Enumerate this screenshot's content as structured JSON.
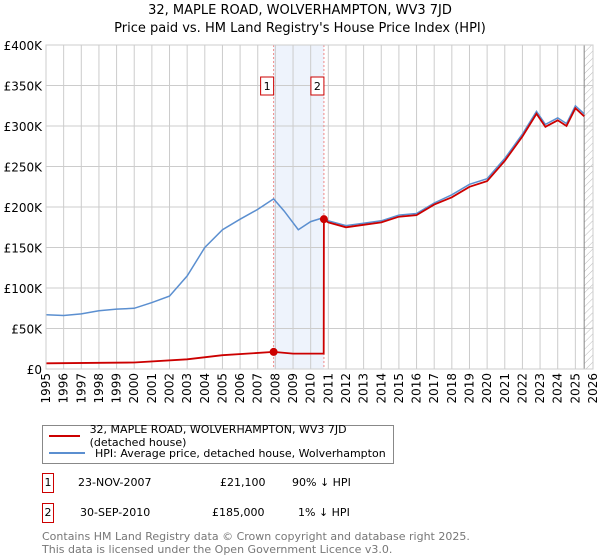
{
  "title": "32, MAPLE ROAD, WOLVERHAMPTON, WV3 7JD",
  "subtitle": "Price paid vs. HM Land Registry's House Price Index (HPI)",
  "chart_data": {
    "type": "line",
    "ylim": [
      0,
      400000
    ],
    "xlim": [
      1995,
      2026
    ],
    "y_ticks": [
      {
        "v": 0,
        "label": "£0"
      },
      {
        "v": 50000,
        "label": "£50K"
      },
      {
        "v": 100000,
        "label": "£100K"
      },
      {
        "v": 150000,
        "label": "£150K"
      },
      {
        "v": 200000,
        "label": "£200K"
      },
      {
        "v": 250000,
        "label": "£250K"
      },
      {
        "v": 300000,
        "label": "£300K"
      },
      {
        "v": 350000,
        "label": "£350K"
      },
      {
        "v": 400000,
        "label": "£400K"
      }
    ],
    "x_ticks": [
      "1995",
      "1996",
      "1997",
      "1998",
      "1999",
      "2000",
      "2001",
      "2002",
      "2003",
      "2004",
      "2005",
      "2006",
      "2007",
      "2008",
      "2009",
      "2010",
      "2011",
      "2012",
      "2013",
      "2014",
      "2015",
      "2016",
      "2017",
      "2018",
      "2019",
      "2020",
      "2021",
      "2022",
      "2023",
      "2024",
      "2025",
      "2026"
    ],
    "series": [
      {
        "name": "32, MAPLE ROAD, WOLVERHAMPTON, WV3 7JD (detached house)",
        "color": "#cc0000",
        "x": [
          1995,
          2000,
          2003,
          2005,
          2007.9,
          2009,
          2010.74,
          2010.75,
          2011,
          2012,
          2013,
          2014,
          2015,
          2016,
          2017,
          2018,
          2019,
          2020,
          2021,
          2022,
          2022.8,
          2023.3,
          2024,
          2024.5,
          2025,
          2025.5
        ],
        "y": [
          7000,
          8000,
          12000,
          17000,
          21100,
          19000,
          19000,
          185000,
          181000,
          175000,
          178000,
          181000,
          188000,
          190000,
          203000,
          212000,
          225000,
          232000,
          257000,
          287000,
          315000,
          299000,
          307000,
          300000,
          322000,
          312000
        ]
      },
      {
        "name": "HPI: Average price, detached house, Wolverhampton",
        "color": "#5b8fd0",
        "x": [
          1995,
          1996,
          1997,
          1998,
          1999,
          2000,
          2001,
          2002,
          2003,
          2004,
          2005,
          2006,
          2007,
          2007.9,
          2008.5,
          2009.3,
          2010,
          2010.75,
          2011,
          2012,
          2013,
          2014,
          2015,
          2016,
          2017,
          2018,
          2019,
          2020,
          2021,
          2022,
          2022.8,
          2023.3,
          2024,
          2024.5,
          2025,
          2025.5
        ],
        "y": [
          67000,
          66000,
          68000,
          72000,
          74000,
          75000,
          82000,
          90000,
          115000,
          150000,
          172000,
          185000,
          197000,
          210000,
          195000,
          172000,
          182000,
          187000,
          183000,
          177000,
          180000,
          183000,
          190000,
          192000,
          205000,
          215000,
          228000,
          235000,
          260000,
          290000,
          318000,
          302000,
          310000,
          303000,
          325000,
          315000
        ]
      }
    ],
    "sales": [
      {
        "n": "1",
        "x": 2007.9,
        "y": 21100
      },
      {
        "n": "2",
        "x": 2010.75,
        "y": 185000
      }
    ],
    "shade": [
      2007.9,
      2010.75
    ],
    "hatch_from": 2025.5
  },
  "table": [
    {
      "n": "1",
      "date": "23-NOV-2007",
      "price": "£21,100",
      "hpi": "90% ↓ HPI"
    },
    {
      "n": "2",
      "date": "30-SEP-2010",
      "price": "£185,000",
      "hpi": "1% ↓ HPI"
    }
  ],
  "footer": [
    "Contains HM Land Registry data © Crown copyright and database right 2025.",
    "This data is licensed under the Open Government Licence v3.0."
  ]
}
